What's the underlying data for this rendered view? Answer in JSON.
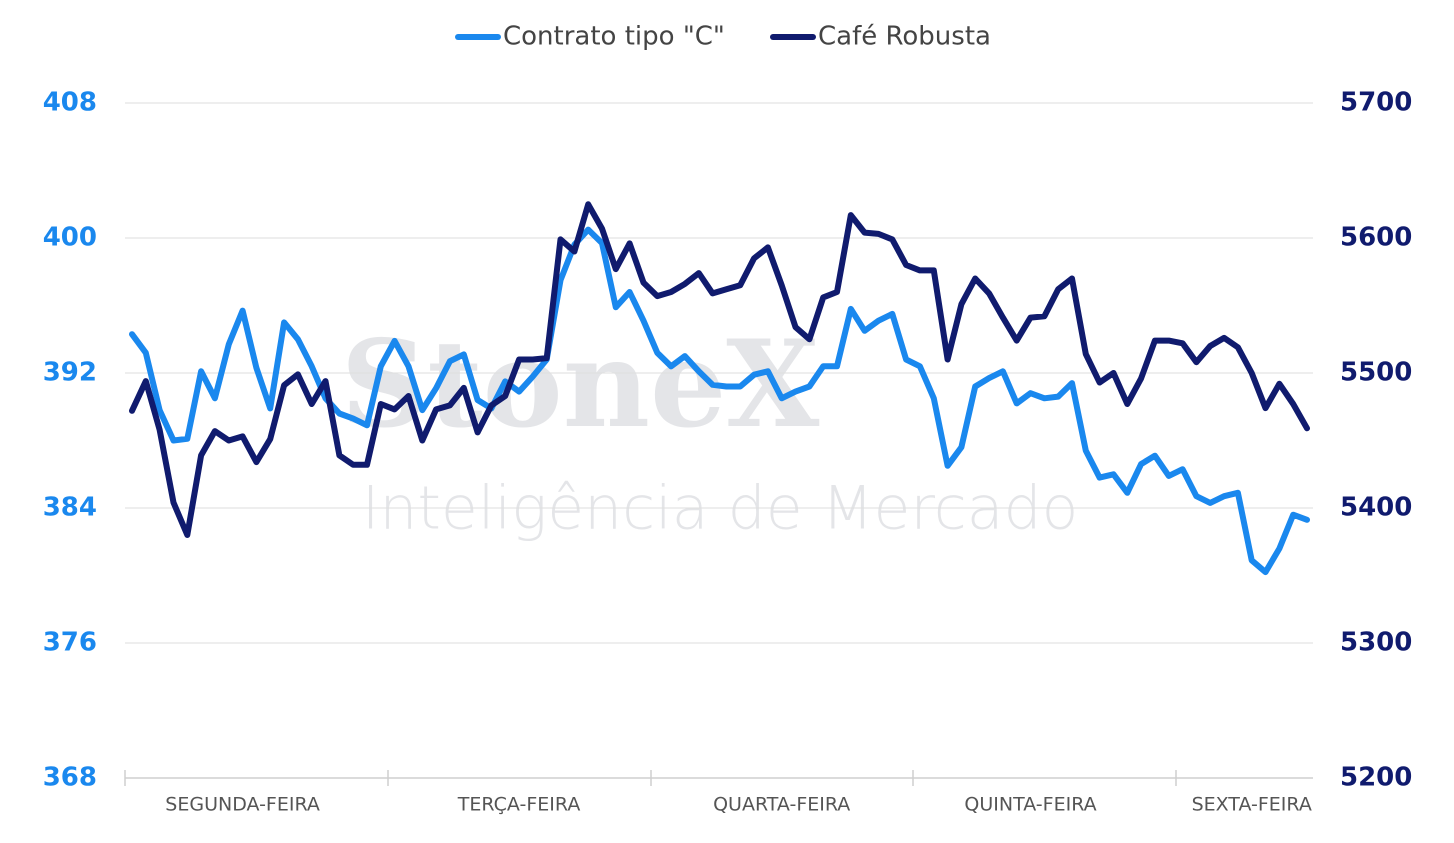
{
  "chart_data": {
    "type": "line",
    "watermark": [
      "StoneX",
      "Inteligência de Mercado"
    ],
    "categories": [
      null,
      null,
      null,
      null,
      null,
      null,
      null,
      null,
      "SEGUNDA-FEIRA",
      null,
      null,
      null,
      null,
      null,
      null,
      null,
      null,
      null,
      null,
      null,
      null,
      null,
      null,
      null,
      null,
      null,
      null,
      null,
      "TERÇA-FEIRA",
      null,
      null,
      null,
      null,
      null,
      null,
      null,
      null,
      null,
      null,
      null,
      null,
      null,
      null,
      null,
      null,
      null,
      null,
      "QUARTA-FEIRA",
      null,
      null,
      null,
      null,
      null,
      null,
      null,
      null,
      null,
      null,
      null,
      null,
      null,
      null,
      null,
      null,
      null,
      "QUINTA-FEIRA",
      null,
      null,
      null,
      null,
      null,
      null,
      null,
      null,
      null,
      null,
      null,
      null,
      null,
      null,
      null,
      "SEXTA-FEIRA",
      null,
      null,
      null,
      null
    ],
    "series": [
      {
        "name": "Contrato tipo \"C\"",
        "color": "#1a88ee",
        "axis": "y",
        "values": [
          394.3,
          393.2,
          389.8,
          388.0,
          388.1,
          392.1,
          390.5,
          393.7,
          395.7,
          392.3,
          389.9,
          395.0,
          394.0,
          392.4,
          390.5,
          389.6,
          389.3,
          388.9,
          392.4,
          393.9,
          392.4,
          389.8,
          391.1,
          392.7,
          393.1,
          390.4,
          389.9,
          391.5,
          390.9,
          391.8,
          392.8,
          397.5,
          399.6,
          400.5,
          399.7,
          395.9,
          396.8,
          395.1,
          393.2,
          392.4,
          393.0,
          392.1,
          391.3,
          391.2,
          391.2,
          391.9,
          392.1,
          390.5,
          390.9,
          391.2,
          392.4,
          392.4,
          395.8,
          394.5,
          395.1,
          395.5,
          392.8,
          392.4,
          390.5,
          386.5,
          387.6,
          391.2,
          391.7,
          392.1,
          390.2,
          390.8,
          390.5,
          390.6,
          391.4,
          387.4,
          385.8,
          386.0,
          384.9,
          386.6,
          387.1,
          385.9,
          386.3,
          384.7,
          384.3,
          384.7,
          384.9,
          380.9,
          380.2,
          381.6,
          383.6,
          383.3
        ]
      },
      {
        "name": "Café Robusta",
        "color": "#101b6e",
        "axis": "y2",
        "values": [
          5472,
          5494,
          5458,
          5404,
          5380,
          5439,
          5457,
          5450,
          5453,
          5434,
          5451,
          5491,
          5499,
          5477,
          5494,
          5439,
          5432,
          5432,
          5477,
          5473,
          5483,
          5450,
          5473,
          5476,
          5489,
          5456,
          5476,
          5483,
          5510,
          5510,
          5511,
          5599,
          5590,
          5625,
          5607,
          5577,
          5596,
          5567,
          5557,
          5560,
          5566,
          5574,
          5559,
          5562,
          5565,
          5585,
          5593,
          5565,
          5534,
          5525,
          5556,
          5560,
          5617,
          5604,
          5603,
          5599,
          5580,
          5576,
          5576,
          5510,
          5551,
          5570,
          5559,
          5541,
          5524,
          5541,
          5542,
          5562,
          5570,
          5514,
          5493,
          5500,
          5477,
          5496,
          5524,
          5524,
          5522,
          5508,
          5520,
          5526,
          5519,
          5500,
          5474,
          5492,
          5477,
          5459
        ]
      }
    ],
    "ylim": [
      368,
      408
    ],
    "yticks": [
      368,
      376,
      384,
      392,
      400,
      408
    ],
    "ycolor": "#1a88ee",
    "y2lim": [
      5200,
      5700
    ],
    "y2ticks": [
      5200,
      5300,
      5400,
      5500,
      5600,
      5700
    ],
    "y2color": "#101b6e",
    "grid": true,
    "legend": "top"
  }
}
